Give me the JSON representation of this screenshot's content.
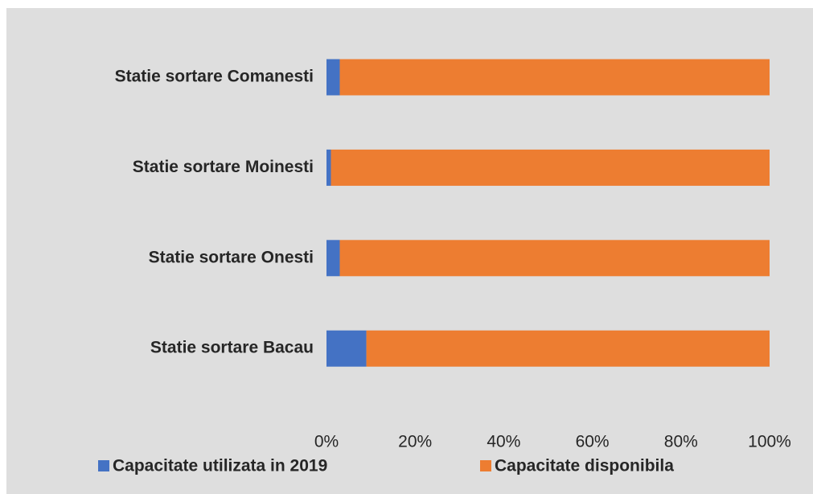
{
  "chart_data": {
    "type": "bar",
    "orientation": "horizontal",
    "stacked": true,
    "categories": [
      "Statie sortare Comanesti",
      "Statie sortare Moinesti",
      "Statie sortare Onesti",
      "Statie sortare Bacau"
    ],
    "series": [
      {
        "name": "Capacitate utilizata in 2019",
        "color": "#4472c4",
        "values": [
          3,
          1,
          3,
          9
        ]
      },
      {
        "name": "Capacitate disponibila",
        "color": "#ed7d31",
        "values": [
          97,
          99,
          97,
          91
        ]
      }
    ],
    "xlim": [
      0,
      100
    ],
    "xticks": [
      {
        "value": 0,
        "label": "0%"
      },
      {
        "value": 20,
        "label": "20%"
      },
      {
        "value": 40,
        "label": "40%"
      },
      {
        "value": 60,
        "label": "60%"
      },
      {
        "value": 80,
        "label": "80%"
      },
      {
        "value": 100,
        "label": "100%"
      }
    ],
    "grid": false,
    "legend": "bottom"
  }
}
